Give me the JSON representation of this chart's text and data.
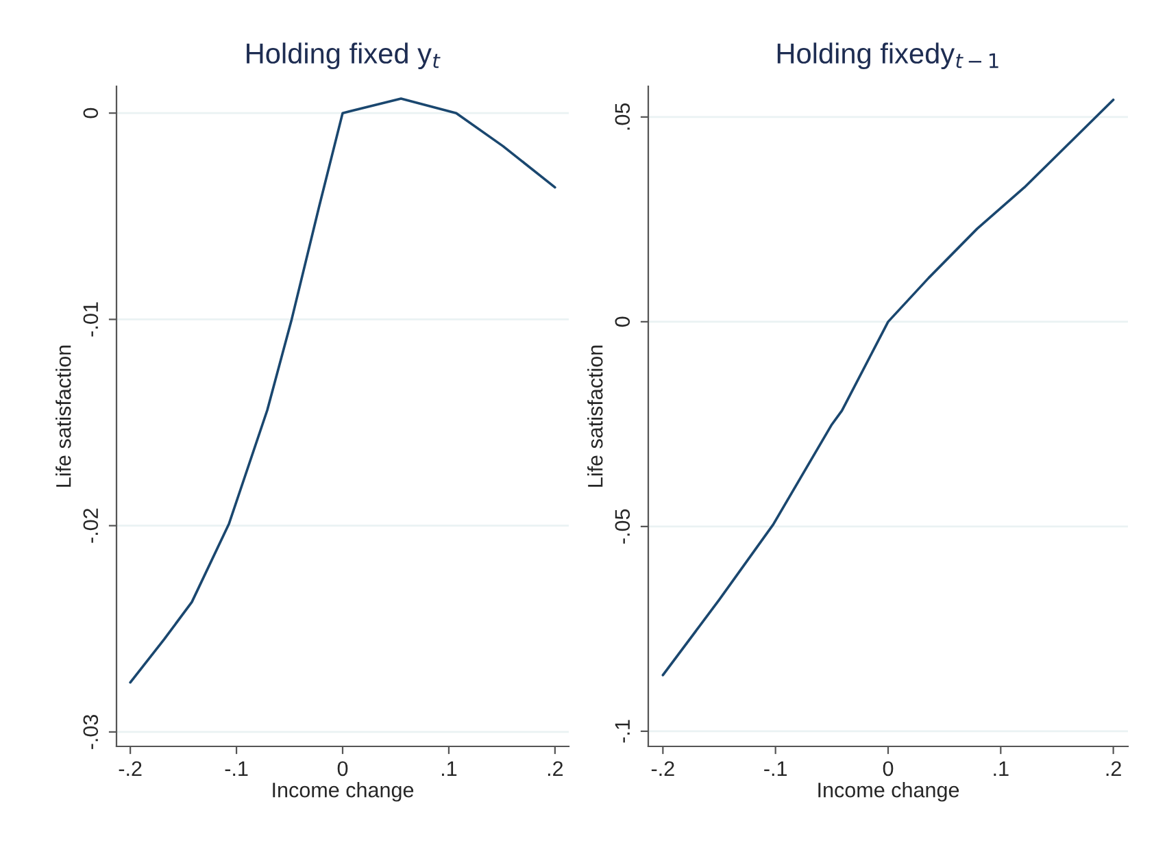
{
  "chart_data": [
    {
      "type": "line",
      "title": "Holding fixed y$_{t}$",
      "xlabel": "Income change",
      "ylabel": "Life satisfaction",
      "x": [
        -0.2,
        -0.168,
        -0.142,
        -0.107,
        -0.071,
        -0.048,
        -0.022,
        0,
        0.055,
        0.107,
        0.151,
        0.2
      ],
      "series": [
        {
          "color": "#1a476f",
          "values": [
            -0.0276,
            -0.0255,
            -0.0237,
            -0.0199,
            -0.0144,
            -0.01,
            -0.0045,
            0,
            0.0007,
            0,
            -0.0016,
            -0.0036
          ]
        }
      ],
      "xlim": [
        -0.213,
        0.213
      ],
      "ylim": [
        -0.0307,
        0.0013
      ],
      "xticks": [
        {
          "value": -0.2,
          "label": "-.2"
        },
        {
          "value": -0.1,
          "label": "-.1"
        },
        0,
        {
          "value": 0.1,
          "label": ".1"
        },
        {
          "value": 0.2,
          "label": ".2"
        }
      ],
      "yticks": [
        {
          "value": -0.03,
          "label": "-.03"
        },
        {
          "value": -0.02,
          "label": "-.02"
        },
        {
          "value": -0.01,
          "label": "-.01"
        },
        0
      ],
      "grid": "y"
    },
    {
      "type": "line",
      "title": "Holding fixedy$_{t−1}$",
      "xlabel": "Income change",
      "ylabel": "Life satisfaction",
      "x": [
        -0.2,
        -0.15,
        -0.102,
        -0.05,
        -0.041,
        0,
        0.036,
        0.079,
        0.121,
        0.2
      ],
      "series": [
        {
          "color": "#1a476f",
          "values": [
            -0.0863,
            -0.0679,
            -0.0495,
            -0.0251,
            -0.0217,
            0,
            0.0107,
            0.0227,
            0.0328,
            0.0542
          ]
        }
      ],
      "xlim": [
        -0.213,
        0.213
      ],
      "ylim": [
        -0.1037,
        0.0575
      ],
      "xticks": [
        {
          "value": -0.2,
          "label": "-.2"
        },
        {
          "value": -0.1,
          "label": "-.1"
        },
        0,
        {
          "value": 0.1,
          "label": ".1"
        },
        {
          "value": 0.2,
          "label": ".2"
        }
      ],
      "yticks": [
        {
          "value": -0.1,
          "label": "-.1"
        },
        {
          "value": -0.05,
          "label": "-.05"
        },
        0,
        {
          "value": 0.05,
          "label": ".05"
        }
      ],
      "grid": "y"
    }
  ]
}
